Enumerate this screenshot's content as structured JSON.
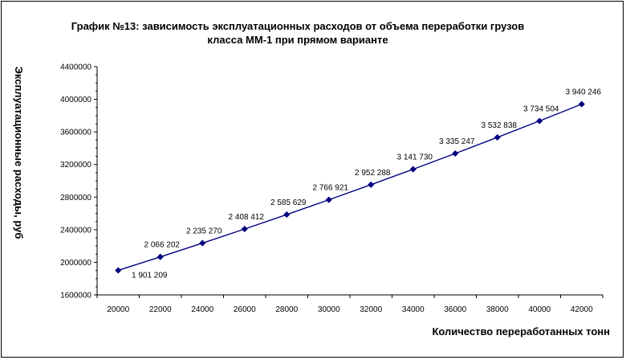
{
  "chart_data": {
    "type": "line",
    "title_lines": [
      "График №13: зависимость эксплуатационных расходов от объема переработки грузов",
      "класса ММ-1 при прямом варианте"
    ],
    "xlabel": "Количество переработанных тонн",
    "ylabel": "Эксплуатационные расходы, руб",
    "x": [
      20000,
      22000,
      24000,
      26000,
      28000,
      30000,
      32000,
      34000,
      36000,
      38000,
      40000,
      42000
    ],
    "x_tick_labels": [
      "20000",
      "22000",
      "24000",
      "26000",
      "28000",
      "30000",
      "32000",
      "34000",
      "36000",
      "38000",
      "40000",
      "42000"
    ],
    "ylim": [
      1600000,
      4400000
    ],
    "y_ticks": [
      1600000,
      2000000,
      2400000,
      2800000,
      3200000,
      3600000,
      4000000,
      4400000
    ],
    "y_tick_labels": [
      "1600000",
      "2000000",
      "2400000",
      "2800000",
      "3200000",
      "3600000",
      "4000000",
      "4400000"
    ],
    "series": [
      {
        "values": [
          1901209,
          2066202,
          2235270,
          2408412,
          2585629,
          2766921,
          2952288,
          3141730,
          3335247,
          3532838,
          3734504,
          3940246
        ],
        "data_labels": [
          "1 901 209",
          "2 066 202",
          "2 235 270",
          "2 408 412",
          "2 585 629",
          "2 766 921",
          "2 952 288",
          "3 141 730",
          "3 335 247",
          "3 532 838",
          "3 734 504",
          "3 940 246"
        ],
        "color": "#000080",
        "marker": "diamond"
      }
    ],
    "grid": false,
    "legend": "none"
  }
}
